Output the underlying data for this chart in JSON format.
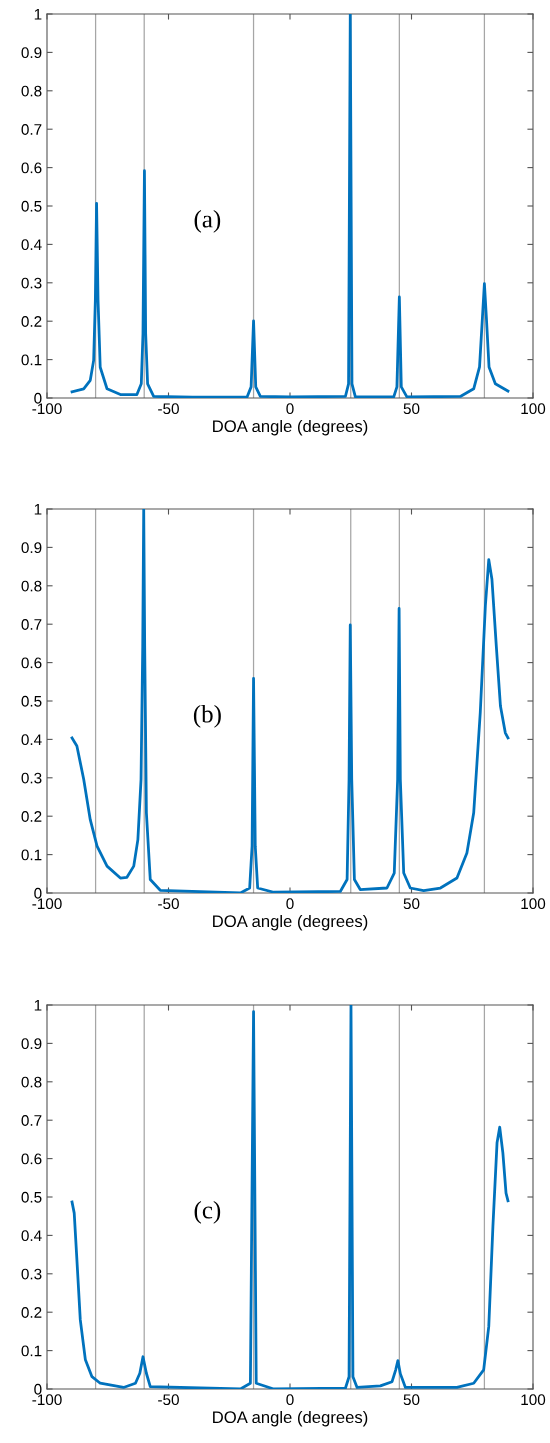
{
  "chart_data": [
    {
      "type": "line",
      "xlabel": "DOA angle (degrees)",
      "annotations": [
        "(a)"
      ],
      "xlim": [
        -100,
        100
      ],
      "ylim": [
        0,
        1
      ],
      "xticks": [
        -100,
        -50,
        0,
        50,
        100
      ],
      "yticks": [
        0,
        0.1,
        0.2,
        0.3,
        0.4,
        0.5,
        0.6,
        0.7,
        0.8,
        0.9,
        1
      ],
      "marker": "none",
      "line_style": "solid",
      "ref_lines": [
        {
          "axis": "x",
          "value": -80,
          "color": "#a6a6a6"
        },
        {
          "axis": "x",
          "value": -60,
          "color": "#a6a6a6"
        },
        {
          "axis": "x",
          "value": -15,
          "color": "#a6a6a6"
        },
        {
          "axis": "x",
          "value": 25,
          "color": "#a6a6a6"
        },
        {
          "axis": "x",
          "value": 45,
          "color": "#a6a6a6"
        },
        {
          "axis": "x",
          "value": 80,
          "color": "#a6a6a6"
        }
      ],
      "series": [
        {
          "color": "#0072bd",
          "x": [
            -89.7,
            -84.9,
            -82.2,
            -80.8,
            -80.1,
            -79.6,
            -79.0,
            -78.1,
            -75.3,
            -69.8,
            -63.0,
            -61.2,
            -60.5,
            -59.9,
            -59.4,
            -58.6,
            -56.1,
            -40,
            -17.7,
            -16.0,
            -15.0,
            -14.1,
            -12.2,
            0,
            22.8,
            24.1,
            24.8,
            25.5,
            26.9,
            42.7,
            44.0,
            45.0,
            45.8,
            48.1,
            70.1,
            75.6,
            78.0,
            79.2,
            80.0,
            80.8,
            81.9,
            84.5,
            89.7
          ],
          "values": [
            0.016,
            0.024,
            0.046,
            0.098,
            0.255,
            0.507,
            0.255,
            0.08,
            0.024,
            0.009,
            0.009,
            0.037,
            0.168,
            0.592,
            0.168,
            0.037,
            0.004,
            0.002,
            0.002,
            0.029,
            0.201,
            0.029,
            0.004,
            0.003,
            0.004,
            0.037,
            1.0,
            0.037,
            0.003,
            0.003,
            0.029,
            0.263,
            0.029,
            0.003,
            0.004,
            0.024,
            0.081,
            0.211,
            0.298,
            0.211,
            0.081,
            0.037,
            0.018
          ]
        }
      ]
    },
    {
      "type": "line",
      "xlabel": "DOA angle (degrees)",
      "annotations": [
        "(b)"
      ],
      "xlim": [
        -100,
        100
      ],
      "ylim": [
        0,
        1
      ],
      "xticks": [
        -100,
        -50,
        0,
        50,
        100
      ],
      "yticks": [
        0,
        0.1,
        0.2,
        0.3,
        0.4,
        0.5,
        0.6,
        0.7,
        0.8,
        0.9,
        1
      ],
      "marker": "none",
      "line_style": "solid",
      "ref_lines": [
        {
          "axis": "x",
          "value": -80,
          "color": "#a6a6a6"
        },
        {
          "axis": "x",
          "value": -60,
          "color": "#a6a6a6"
        },
        {
          "axis": "x",
          "value": -15,
          "color": "#a6a6a6"
        },
        {
          "axis": "x",
          "value": 25,
          "color": "#a6a6a6"
        },
        {
          "axis": "x",
          "value": 45,
          "color": "#a6a6a6"
        },
        {
          "axis": "x",
          "value": 80,
          "color": "#a6a6a6"
        }
      ],
      "series": [
        {
          "color": "#0072bd",
          "x": [
            -89.7,
            -87.7,
            -84.9,
            -82.2,
            -79.4,
            -75.3,
            -69.8,
            -67.1,
            -64.3,
            -62.6,
            -61.3,
            -60.6,
            -60.2,
            -59.8,
            -59.1,
            -57.5,
            -53.4,
            -20.4,
            -16.6,
            -15.6,
            -15.0,
            -14.3,
            -13.3,
            -6.7,
            20.7,
            23.5,
            24.3,
            24.8,
            25.4,
            26.5,
            28.9,
            39.9,
            42.9,
            44.3,
            44.9,
            45.4,
            46.8,
            49.5,
            55.0,
            61.9,
            68.7,
            72.8,
            75.6,
            78.3,
            80.4,
            81.8,
            83.1,
            84.9,
            86.6,
            88.6,
            89.7
          ],
          "values": [
            0.404,
            0.383,
            0.296,
            0.191,
            0.122,
            0.07,
            0.039,
            0.041,
            0.07,
            0.139,
            0.296,
            0.643,
            1.0,
            0.643,
            0.209,
            0.035,
            0.007,
            0.0,
            0.013,
            0.122,
            0.559,
            0.122,
            0.013,
            0.002,
            0.004,
            0.035,
            0.296,
            0.698,
            0.296,
            0.035,
            0.009,
            0.013,
            0.052,
            0.296,
            0.741,
            0.296,
            0.052,
            0.013,
            0.006,
            0.013,
            0.039,
            0.104,
            0.209,
            0.47,
            0.748,
            0.868,
            0.817,
            0.643,
            0.487,
            0.417,
            0.404
          ]
        }
      ]
    },
    {
      "type": "line",
      "xlabel": "DOA angle (degrees)",
      "annotations": [
        "(c)"
      ],
      "xlim": [
        -100,
        100
      ],
      "ylim": [
        0,
        1
      ],
      "xticks": [
        -100,
        -50,
        0,
        50,
        100
      ],
      "yticks": [
        0,
        0.1,
        0.2,
        0.3,
        0.4,
        0.5,
        0.6,
        0.7,
        0.8,
        0.9,
        1
      ],
      "marker": "none",
      "line_style": "solid",
      "ref_lines": [
        {
          "axis": "x",
          "value": -80,
          "color": "#a6a6a6"
        },
        {
          "axis": "x",
          "value": -60,
          "color": "#a6a6a6"
        },
        {
          "axis": "x",
          "value": -15,
          "color": "#a6a6a6"
        },
        {
          "axis": "x",
          "value": 25,
          "color": "#a6a6a6"
        },
        {
          "axis": "x",
          "value": 45,
          "color": "#a6a6a6"
        },
        {
          "axis": "x",
          "value": 80,
          "color": "#a6a6a6"
        }
      ],
      "series": [
        {
          "color": "#0072bd",
          "x": [
            -89.7,
            -88.8,
            -87.7,
            -86.3,
            -84.2,
            -81.5,
            -78.1,
            -68.5,
            -63.6,
            -61.8,
            -60.5,
            -59.1,
            -57.5,
            -20.4,
            -16.3,
            -15.0,
            -13.9,
            -6.7,
            22.8,
            24.3,
            25.1,
            25.9,
            27.6,
            37.2,
            42.0,
            43.5,
            44.4,
            45.4,
            47.5,
            68.7,
            75.6,
            79.7,
            81.8,
            83.5,
            85.2,
            86.3,
            87.6,
            88.9,
            89.7
          ],
          "values": [
            0.487,
            0.458,
            0.337,
            0.18,
            0.076,
            0.032,
            0.015,
            0.004,
            0.015,
            0.041,
            0.084,
            0.041,
            0.006,
            0.0,
            0.015,
            0.983,
            0.015,
            0.0,
            0.002,
            0.032,
            1.0,
            0.032,
            0.004,
            0.008,
            0.019,
            0.05,
            0.074,
            0.04,
            0.004,
            0.004,
            0.015,
            0.05,
            0.163,
            0.423,
            0.641,
            0.682,
            0.615,
            0.51,
            0.49
          ]
        }
      ]
    }
  ]
}
